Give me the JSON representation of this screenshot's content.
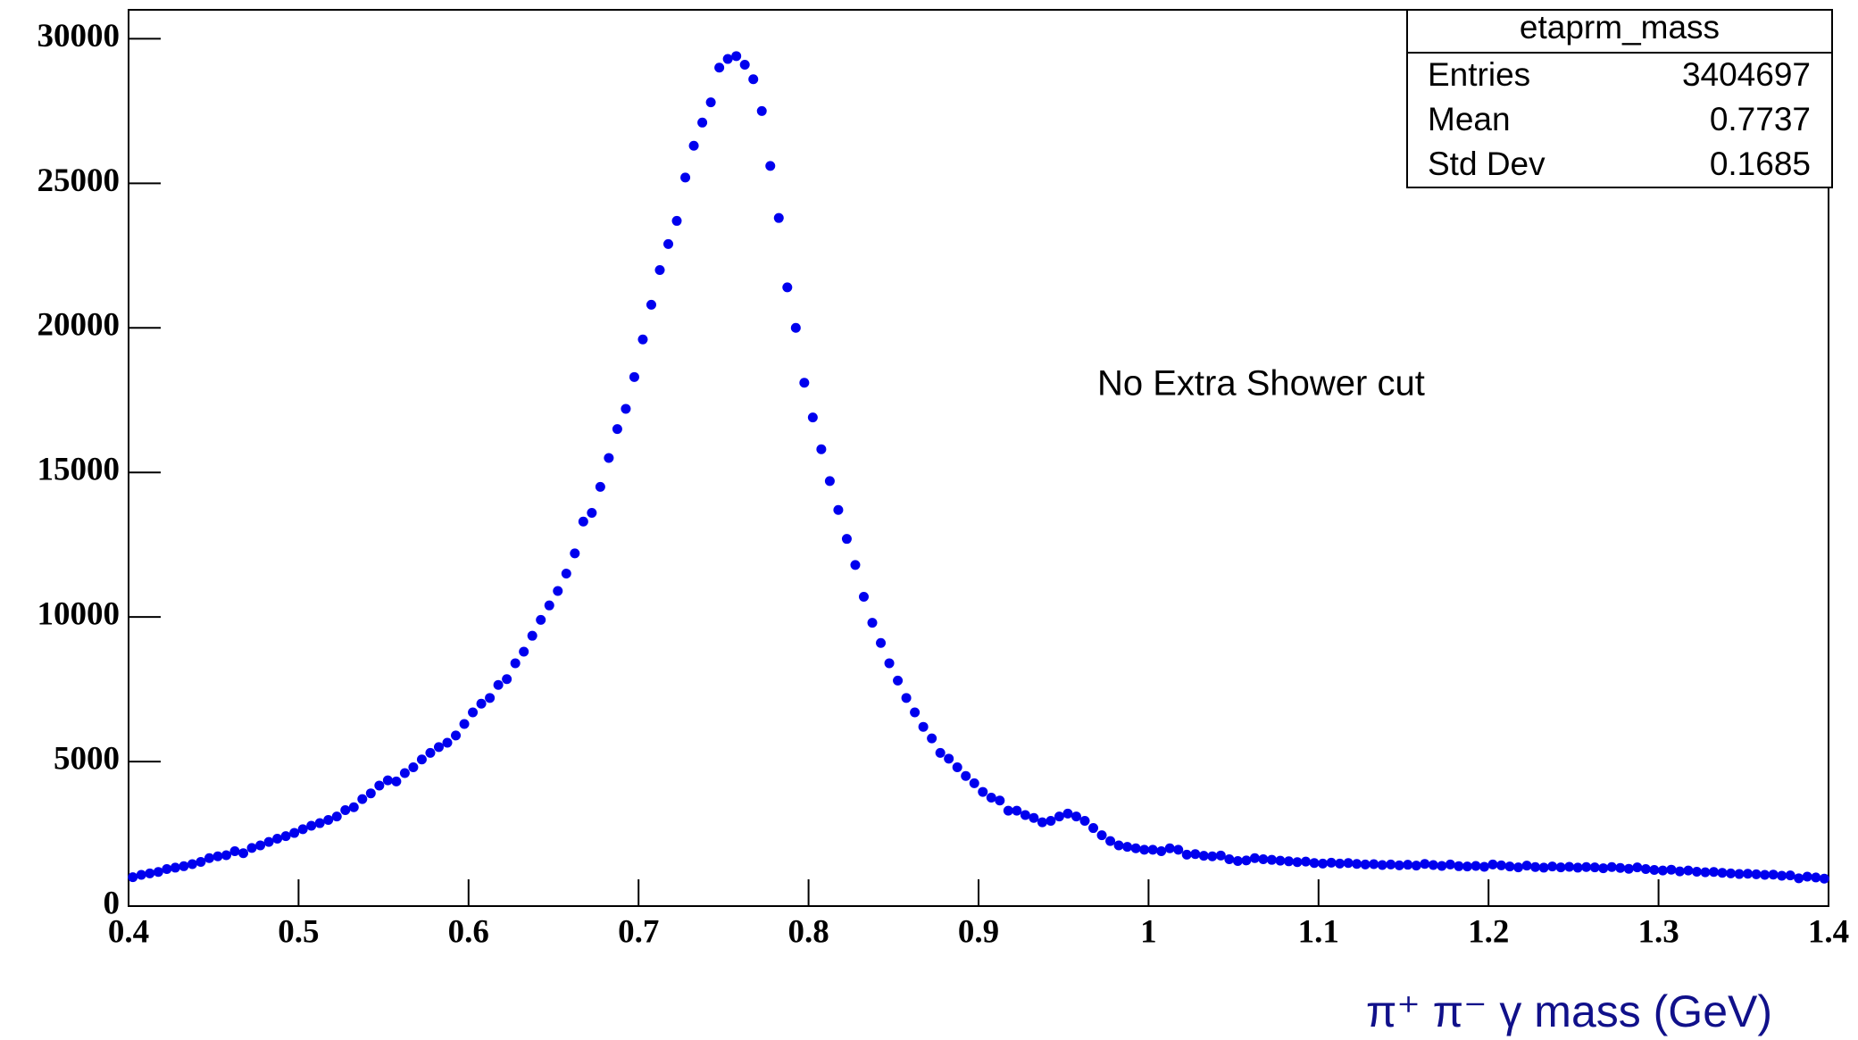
{
  "chart_data": {
    "type": "scatter",
    "x_label": "π⁺ π⁻ γ mass (GeV)",
    "annotation": "No Extra Shower cut",
    "stats": {
      "title": "etaprm_mass",
      "rows": [
        {
          "name": "Entries",
          "value": 3404697
        },
        {
          "name": "Mean",
          "value": 0.7737
        },
        {
          "name": "Std Dev",
          "value": 0.1685
        }
      ]
    },
    "color": "#0000ee",
    "xlim": [
      0.4,
      1.4
    ],
    "xticks": [
      0.4,
      0.5,
      0.6,
      0.7,
      0.8,
      0.9,
      1,
      1.1,
      1.2,
      1.3,
      1.4
    ],
    "ylim": [
      0,
      31000
    ],
    "yticks": [
      0,
      5000,
      10000,
      15000,
      20000,
      25000,
      30000
    ],
    "x": [
      0.4025,
      0.4075,
      0.4125,
      0.4175,
      0.4225,
      0.4275,
      0.4325,
      0.4375,
      0.4425,
      0.4475,
      0.4525,
      0.4575,
      0.4625,
      0.4675,
      0.4725,
      0.4775,
      0.4825,
      0.4875,
      0.4925,
      0.4975,
      0.5025,
      0.5075,
      0.5125,
      0.5175,
      0.5225,
      0.5275,
      0.5325,
      0.5375,
      0.5425,
      0.5475,
      0.5525,
      0.5575,
      0.5625,
      0.5675,
      0.5725,
      0.5775,
      0.5825,
      0.5875,
      0.5925,
      0.5975,
      0.6025,
      0.6075,
      0.6125,
      0.6175,
      0.6225,
      0.6275,
      0.6325,
      0.6375,
      0.6425,
      0.6475,
      0.6525,
      0.6575,
      0.6625,
      0.6675,
      0.6725,
      0.6775,
      0.6825,
      0.6875,
      0.6925,
      0.6975,
      0.7025,
      0.7075,
      0.7125,
      0.7175,
      0.7225,
      0.7275,
      0.7325,
      0.7375,
      0.7425,
      0.7475,
      0.7525,
      0.7575,
      0.7625,
      0.7675,
      0.7725,
      0.7775,
      0.7825,
      0.7875,
      0.7925,
      0.7975,
      0.8025,
      0.8075,
      0.8125,
      0.8175,
      0.8225,
      0.8275,
      0.8325,
      0.8375,
      0.8425,
      0.8475,
      0.8525,
      0.8575,
      0.8625,
      0.8675,
      0.8725,
      0.8775,
      0.8825,
      0.8875,
      0.8925,
      0.8975,
      0.9025,
      0.9075,
      0.9125,
      0.9175,
      0.9225,
      0.9275,
      0.9325,
      0.9375,
      0.9425,
      0.9475,
      0.9525,
      0.9575,
      0.9625,
      0.9675,
      0.9725,
      0.9775,
      0.9825,
      0.9875,
      0.9925,
      0.9975,
      1.0025,
      1.0075,
      1.0125,
      1.0175,
      1.0225,
      1.0275,
      1.0325,
      1.0375,
      1.0425,
      1.0475,
      1.0525,
      1.0575,
      1.0625,
      1.0675,
      1.0725,
      1.0775,
      1.0825,
      1.0875,
      1.0925,
      1.0975,
      1.1025,
      1.1075,
      1.1125,
      1.1175,
      1.1225,
      1.1275,
      1.1325,
      1.1375,
      1.1425,
      1.1475,
      1.1525,
      1.1575,
      1.1625,
      1.1675,
      1.1725,
      1.1775,
      1.1825,
      1.1875,
      1.1925,
      1.1975,
      1.2025,
      1.2075,
      1.2125,
      1.2175,
      1.2225,
      1.2275,
      1.2325,
      1.2375,
      1.2425,
      1.2475,
      1.2525,
      1.2575,
      1.2625,
      1.2675,
      1.2725,
      1.2775,
      1.2825,
      1.2875,
      1.2925,
      1.2975,
      1.3025,
      1.3075,
      1.3125,
      1.3175,
      1.3225,
      1.3275,
      1.3325,
      1.3375,
      1.3425,
      1.3475,
      1.3525,
      1.3575,
      1.3625,
      1.3675,
      1.3725,
      1.3775,
      1.3825,
      1.3875,
      1.3925,
      1.3975
    ],
    "values": [
      1000,
      1080,
      1130,
      1180,
      1280,
      1330,
      1380,
      1450,
      1530,
      1660,
      1720,
      1760,
      1900,
      1830,
      2010,
      2100,
      2220,
      2330,
      2420,
      2530,
      2660,
      2780,
      2870,
      2980,
      3100,
      3320,
      3420,
      3700,
      3900,
      4170,
      4350,
      4310,
      4600,
      4800,
      5070,
      5300,
      5500,
      5650,
      5900,
      6300,
      6700,
      7000,
      7200,
      7650,
      7850,
      8400,
      8800,
      9350,
      9900,
      10400,
      10900,
      11500,
      12200,
      13300,
      13600,
      14500,
      15500,
      16500,
      17200,
      18300,
      19600,
      20800,
      22000,
      22900,
      23700,
      25200,
      26300,
      27100,
      27800,
      29000,
      29300,
      29400,
      29100,
      28600,
      27500,
      25600,
      23800,
      21400,
      20000,
      18100,
      16900,
      15800,
      14700,
      13700,
      12700,
      11800,
      10700,
      9800,
      9100,
      8400,
      7800,
      7200,
      6700,
      6200,
      5800,
      5300,
      5100,
      4800,
      4500,
      4250,
      3950,
      3750,
      3650,
      3300,
      3300,
      3150,
      3050,
      2900,
      2950,
      3100,
      3200,
      3100,
      2950,
      2700,
      2450,
      2250,
      2100,
      2050,
      2000,
      1950,
      1950,
      1900,
      2000,
      1950,
      1780,
      1800,
      1740,
      1720,
      1750,
      1620,
      1560,
      1580,
      1660,
      1620,
      1600,
      1570,
      1550,
      1520,
      1540,
      1490,
      1470,
      1500,
      1470,
      1490,
      1460,
      1440,
      1450,
      1420,
      1440,
      1410,
      1430,
      1400,
      1460,
      1420,
      1390,
      1440,
      1380,
      1370,
      1390,
      1360,
      1440,
      1410,
      1370,
      1340,
      1400,
      1350,
      1330,
      1370,
      1340,
      1360,
      1330,
      1350,
      1340,
      1310,
      1350,
      1320,
      1290,
      1340,
      1280,
      1250,
      1230,
      1260,
      1200,
      1230,
      1190,
      1170,
      1180,
      1150,
      1130,
      1110,
      1120,
      1100,
      1080,
      1090,
      1050,
      1060,
      960,
      1020,
      990,
      950
    ]
  }
}
